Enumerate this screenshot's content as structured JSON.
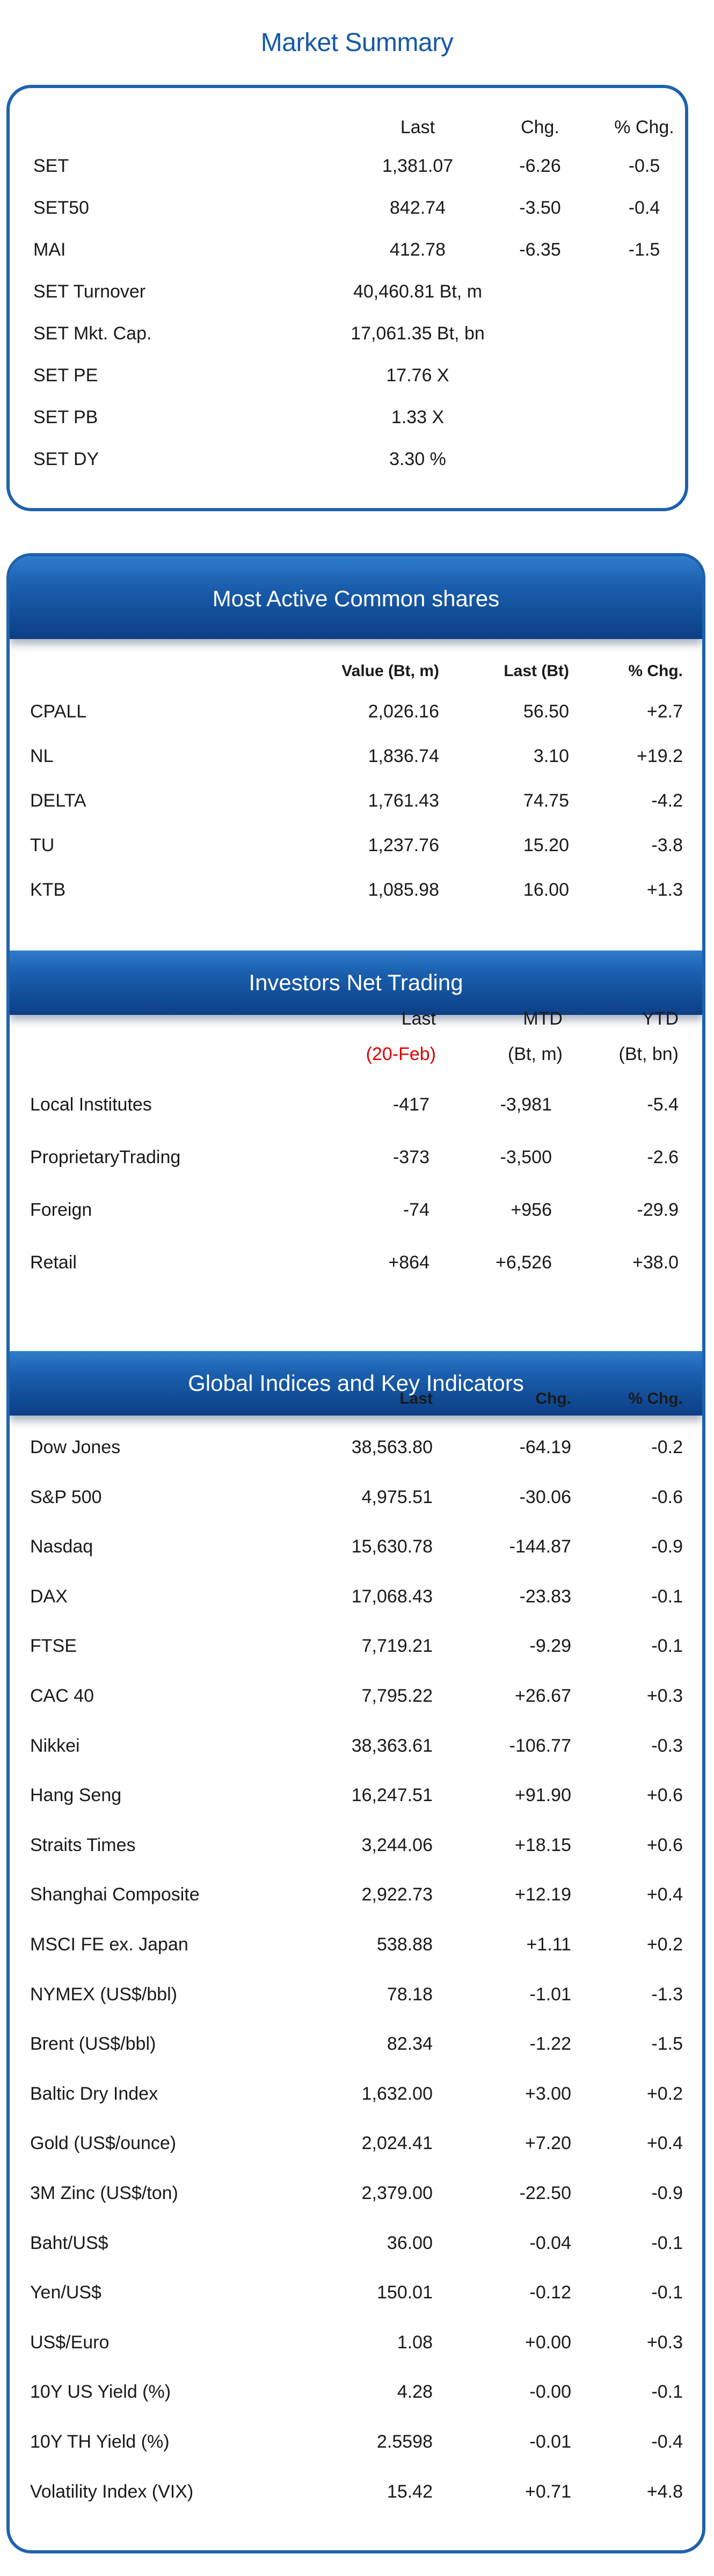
{
  "title": "Market Summary",
  "summary": {
    "headers": [
      "Last",
      "Chg.",
      "% Chg."
    ],
    "rows": [
      {
        "label": "SET",
        "last": "1,381.07",
        "chg": "-6.26",
        "pct": "-0.5"
      },
      {
        "label": "SET50",
        "last": "842.74",
        "chg": "-3.50",
        "pct": "-0.4"
      },
      {
        "label": "MAI",
        "last": "412.78",
        "chg": "-6.35",
        "pct": "-1.5"
      },
      {
        "label": "SET Turnover",
        "last": "40,460.81 Bt, m",
        "chg": "",
        "pct": ""
      },
      {
        "label": "SET Mkt. Cap.",
        "last": "17,061.35 Bt, bn",
        "chg": "",
        "pct": ""
      },
      {
        "label": "SET PE",
        "last": "17.76 X",
        "chg": "",
        "pct": ""
      },
      {
        "label": "SET PB",
        "last": "1.33 X",
        "chg": "",
        "pct": ""
      },
      {
        "label": "SET DY",
        "last": "3.30 %",
        "chg": "",
        "pct": ""
      }
    ]
  },
  "most_active": {
    "title": "Most Active Common shares",
    "headers": [
      "Value (Bt, m)",
      "Last (Bt)",
      "% Chg."
    ],
    "rows": [
      {
        "label": "CPALL",
        "value": "2,026.16",
        "last": "56.50",
        "pct": "+2.7"
      },
      {
        "label": "NL",
        "value": "1,836.74",
        "last": "3.10",
        "pct": "+19.2"
      },
      {
        "label": "DELTA",
        "value": "1,761.43",
        "last": "74.75",
        "pct": "-4.2"
      },
      {
        "label": "TU",
        "value": "1,237.76",
        "last": "15.20",
        "pct": "-3.8"
      },
      {
        "label": "KTB",
        "value": "1,085.98",
        "last": "16.00",
        "pct": "+1.3"
      }
    ]
  },
  "investors": {
    "title": "Investors Net Trading",
    "headers": [
      "Last",
      "MTD",
      "YTD"
    ],
    "subheaders": [
      "(20-Feb)",
      "(Bt, m)",
      "(Bt, bn)"
    ],
    "highlight_color": "#e00000",
    "rows": [
      {
        "label": "Local Institutes",
        "last": "-417",
        "mtd": "-3,981",
        "ytd": "-5.4"
      },
      {
        "label": "ProprietaryTrading",
        "last": "-373",
        "mtd": "-3,500",
        "ytd": "-2.6"
      },
      {
        "label": "Foreign",
        "last": "-74",
        "mtd": "+956",
        "ytd": "-29.9"
      },
      {
        "label": "Retail",
        "last": "+864",
        "mtd": "+6,526",
        "ytd": "+38.0"
      }
    ]
  },
  "global": {
    "title": "Global Indices and Key Indicators",
    "headers": [
      "Last",
      "Chg.",
      "% Chg."
    ],
    "rows": [
      {
        "label": "Dow Jones",
        "last": "38,563.80",
        "chg": "-64.19",
        "pct": "-0.2"
      },
      {
        "label": "S&P 500",
        "last": "4,975.51",
        "chg": "-30.06",
        "pct": "-0.6"
      },
      {
        "label": "Nasdaq",
        "last": "15,630.78",
        "chg": "-144.87",
        "pct": "-0.9"
      },
      {
        "label": "DAX",
        "last": "17,068.43",
        "chg": "-23.83",
        "pct": "-0.1"
      },
      {
        "label": "FTSE",
        "last": "7,719.21",
        "chg": "-9.29",
        "pct": "-0.1"
      },
      {
        "label": "CAC 40",
        "last": "7,795.22",
        "chg": "+26.67",
        "pct": "+0.3"
      },
      {
        "label": "Nikkei",
        "last": "38,363.61",
        "chg": "-106.77",
        "pct": "-0.3"
      },
      {
        "label": "Hang Seng",
        "last": "16,247.51",
        "chg": "+91.90",
        "pct": "+0.6"
      },
      {
        "label": "Straits Times",
        "last": "3,244.06",
        "chg": "+18.15",
        "pct": "+0.6"
      },
      {
        "label": "Shanghai Composite",
        "last": "2,922.73",
        "chg": "+12.19",
        "pct": "+0.4"
      },
      {
        "label": "MSCI FE ex. Japan",
        "last": "538.88",
        "chg": "+1.11",
        "pct": "+0.2"
      },
      {
        "label": "NYMEX (US$/bbl)",
        "last": "78.18",
        "chg": "-1.01",
        "pct": "-1.3"
      },
      {
        "label": "Brent (US$/bbl)",
        "last": "82.34",
        "chg": "-1.22",
        "pct": "-1.5"
      },
      {
        "label": "Baltic Dry Index",
        "last": "1,632.00",
        "chg": "+3.00",
        "pct": "+0.2"
      },
      {
        "label": "Gold (US$/ounce)",
        "last": "2,024.41",
        "chg": "+7.20",
        "pct": "+0.4"
      },
      {
        "label": "3M Zinc (US$/ton)",
        "last": "2,379.00",
        "chg": "-22.50",
        "pct": "-0.9"
      },
      {
        "label": "Baht/US$",
        "last": "36.00",
        "chg": "-0.04",
        "pct": "-0.1"
      },
      {
        "label": "Yen/US$",
        "last": "150.01",
        "chg": "-0.12",
        "pct": "-0.1"
      },
      {
        "label": "US$/Euro",
        "last": "1.08",
        "chg": "+0.00",
        "pct": "+0.3"
      },
      {
        "label": "10Y US Yield (%)",
        "last": "4.28",
        "chg": "-0.00",
        "pct": "-0.1"
      },
      {
        "label": "10Y TH Yield (%)",
        "last": "2.5598",
        "chg": "-0.01",
        "pct": "-0.4"
      },
      {
        "label": "Volatility Index (VIX)",
        "last": "15.42",
        "chg": "+0.71",
        "pct": "+4.8"
      }
    ]
  }
}
